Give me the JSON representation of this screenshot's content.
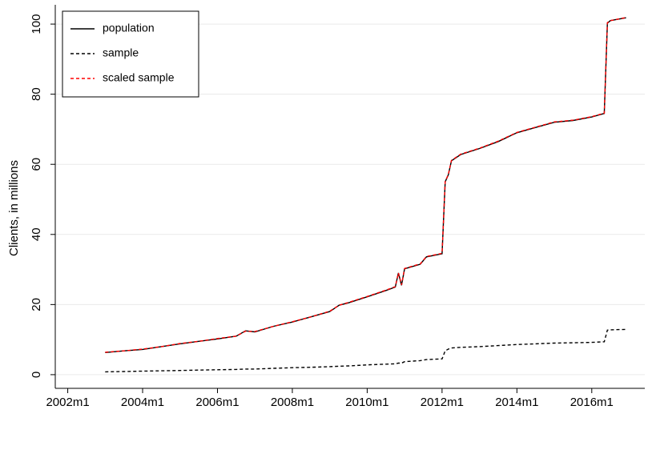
{
  "chart_data": {
    "type": "line",
    "ylabel": "Clients, in millions",
    "x": [
      "2003m1",
      "2003m7",
      "2004m1",
      "2004m7",
      "2005m1",
      "2005m7",
      "2006m1",
      "2006m7",
      "2006m10",
      "2007m1",
      "2007m7",
      "2008m1",
      "2008m7",
      "2009m1",
      "2009m4",
      "2009m7",
      "2010m1",
      "2010m7",
      "2010m10",
      "2010m11",
      "2010m12",
      "2011m1",
      "2011m6",
      "2011m8",
      "2012m1",
      "2012m2",
      "2012m3",
      "2012m4",
      "2012m7",
      "2013m1",
      "2013m7",
      "2014m1",
      "2014m7",
      "2015m1",
      "2015m7",
      "2016m1",
      "2016m5",
      "2016m6",
      "2016m7",
      "2016m12"
    ],
    "series": [
      {
        "name": "population",
        "color": "#000000",
        "style": "solid",
        "values": [
          6.3,
          6.8,
          7.2,
          8.0,
          8.8,
          9.5,
          10.2,
          11.0,
          12.5,
          12.2,
          13.8,
          15.0,
          16.5,
          18.0,
          19.8,
          20.5,
          22.2,
          24.0,
          25.0,
          29.0,
          25.5,
          30.2,
          31.5,
          33.6,
          34.5,
          55.0,
          57.0,
          61.0,
          62.8,
          64.5,
          66.5,
          69.0,
          70.5,
          72.0,
          72.5,
          73.5,
          74.5,
          100.3,
          101.0,
          101.8
        ]
      },
      {
        "name": "sample",
        "color": "#000000",
        "style": "dashed",
        "values": [
          0.8,
          0.9,
          1.0,
          1.1,
          1.2,
          1.3,
          1.4,
          1.5,
          1.6,
          1.6,
          1.8,
          2.0,
          2.1,
          2.3,
          2.4,
          2.5,
          2.8,
          3.0,
          3.1,
          3.3,
          3.3,
          3.7,
          4.0,
          4.3,
          4.5,
          6.8,
          7.3,
          7.6,
          7.8,
          8.0,
          8.3,
          8.6,
          8.8,
          9.0,
          9.1,
          9.2,
          9.4,
          12.7,
          12.8,
          12.9
        ]
      },
      {
        "name": "scaled sample",
        "color": "#ff0000",
        "style": "dashed",
        "values": [
          6.4,
          6.8,
          7.3,
          8.0,
          8.9,
          9.5,
          10.3,
          11.0,
          12.4,
          12.3,
          13.8,
          15.1,
          16.5,
          18.1,
          19.8,
          20.6,
          22.3,
          24.1,
          25.1,
          29.0,
          25.6,
          30.3,
          31.6,
          33.7,
          34.6,
          55.1,
          57.1,
          61.1,
          62.9,
          64.6,
          66.6,
          69.1,
          70.6,
          72.1,
          72.6,
          73.6,
          74.6,
          100.4,
          101.0,
          101.9
        ]
      }
    ],
    "xlim": [
      "2001m9",
      "2017m6"
    ],
    "xticks": [
      "2002m1",
      "2004m1",
      "2006m1",
      "2008m1",
      "2010m1",
      "2012m1",
      "2014m1",
      "2016m1"
    ],
    "ylim": [
      -3.9,
      105.5
    ],
    "yticks": [
      0,
      20,
      40,
      60,
      80,
      100
    ],
    "grid": true,
    "legend": "top-left"
  }
}
